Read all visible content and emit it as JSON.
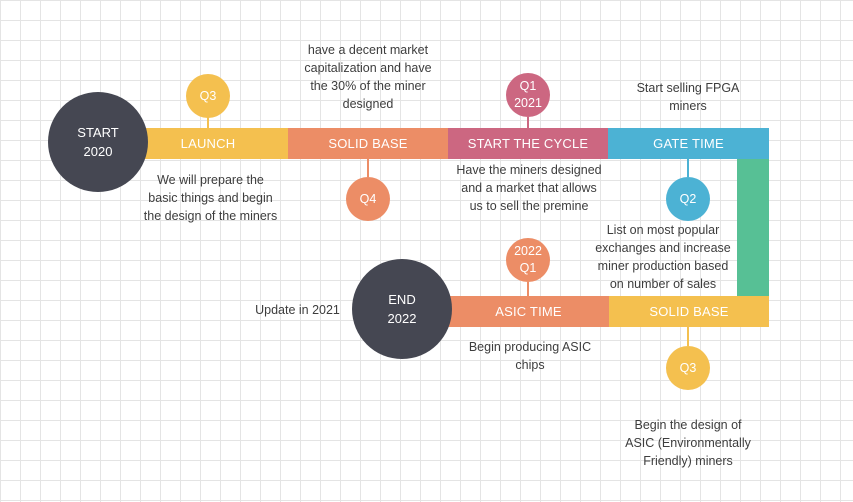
{
  "colors": {
    "dark": "#454752",
    "yellow": "#f4c04f",
    "orange": "#ec8d66",
    "pink": "#cc6781",
    "blue": "#4cb2d4",
    "green": "#57c095"
  },
  "start": {
    "label": "START",
    "year": "2020"
  },
  "end": {
    "label": "END",
    "year": "2022"
  },
  "top_row": [
    {
      "label": "LAUNCH",
      "color": "yellow"
    },
    {
      "label": "SOLID BASE",
      "color": "orange"
    },
    {
      "label": "START THE CYCLE",
      "color": "pink"
    },
    {
      "label": "GATE TIME",
      "color": "blue"
    }
  ],
  "bottom_row": [
    {
      "label": "ASIC TIME",
      "color": "orange"
    },
    {
      "label": "SOLID BASE",
      "color": "yellow"
    }
  ],
  "markers": [
    {
      "text": "Q3",
      "color": "yellow"
    },
    {
      "text": "Q4",
      "color": "orange"
    },
    {
      "text": "Q1\n2021",
      "color": "pink"
    },
    {
      "text": "Q2",
      "color": "blue"
    },
    {
      "text": "2022\nQ1",
      "color": "orange"
    },
    {
      "text": "Q3",
      "color": "yellow"
    }
  ],
  "descriptions": {
    "launch": "We will prepare the\nbasic things and begin\nthe design of the miners",
    "solid_base": "have a decent market\ncapitalization and have\nthe 30% of the miner\ndesigned",
    "start_cycle": "Have the miners designed\nand a market that allows\nus to sell the premine",
    "gate_time_top": "Start selling FPGA\nminers",
    "gate_time_q2": "List on most popular\nexchanges and increase\nminer production based\non number of sales",
    "update": "Update in 2021",
    "asic_time": "Begin producing ASIC\nchips",
    "solid_base_2": "Begin the design of\nASIC (Environmentally\nFriendly) miners"
  }
}
